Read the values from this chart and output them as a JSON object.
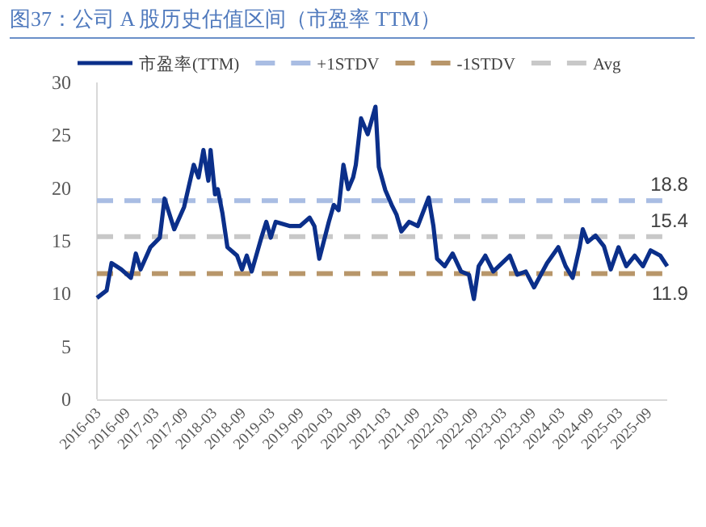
{
  "chart_data": {
    "type": "line",
    "title": "图37：公司 A 股历史估值区间（市盈率 TTM）",
    "xlim": [
      "2016-03",
      "2026-01"
    ],
    "xticks": [
      {
        "value": "2016-03",
        "label": "2016-03"
      },
      {
        "value": "2016-09",
        "label": "2016-09"
      },
      {
        "value": "2017-03",
        "label": "2017-03"
      },
      {
        "value": "2017-09",
        "label": "2017-09"
      },
      {
        "value": "2018-03",
        "label": "2018-03"
      },
      {
        "value": "2018-09",
        "label": "2018-09"
      },
      {
        "value": "2019-03",
        "label": "2019-03"
      },
      {
        "value": "2019-09",
        "label": "2019-09"
      },
      {
        "value": "2020-03",
        "label": "2020-03"
      },
      {
        "value": "2020-09",
        "label": "2020-09"
      },
      {
        "value": "2021-03",
        "label": "2021-03"
      },
      {
        "value": "2021-09",
        "label": "2021-09"
      },
      {
        "value": "2022-03",
        "label": "2022-03"
      },
      {
        "value": "2022-09",
        "label": "2022-09"
      },
      {
        "value": "2023-03",
        "label": "2023-03"
      },
      {
        "value": "2023-09",
        "label": "2023-09"
      },
      {
        "value": "2024-03",
        "label": "2024-03"
      },
      {
        "value": "2024-09",
        "label": "2024-09"
      },
      {
        "value": "2025-03",
        "label": "2025-03"
      },
      {
        "value": "2025-09",
        "label": "2025-09"
      }
    ],
    "ylim": [
      0,
      30
    ],
    "yticks": [
      0,
      5,
      10,
      15,
      20,
      25,
      30
    ],
    "grid": false,
    "legend": "top",
    "series": [
      {
        "name": "市盈率(TTM)",
        "color": "#0b2f8a",
        "line_style": "solid",
        "x": [
          "2016-03",
          "2016-05",
          "2016-06",
          "2016-08",
          "2016-10",
          "2016-11",
          "2016-12",
          "2017-02",
          "2017-04",
          "2017-05",
          "2017-07",
          "2017-09",
          "2017-11",
          "2017-12",
          "2018-01",
          "2018-02-01",
          "2018-02-15",
          "2018-03-15",
          "2018-04",
          "2018-05",
          "2018-06",
          "2018-08",
          "2018-09",
          "2018-10",
          "2018-11",
          "2019-01",
          "2019-02",
          "2019-03",
          "2019-04",
          "2019-07",
          "2019-09",
          "2019-11",
          "2019-12",
          "2020-01",
          "2020-03",
          "2020-04",
          "2020-05",
          "2020-06",
          "2020-07",
          "2020-08-01",
          "2020-08-18",
          "2020-09-20",
          "2020-11",
          "2020-12-20",
          "2021-01-10",
          "2021-02-20",
          "2021-04",
          "2021-05",
          "2021-06",
          "2021-07-20",
          "2021-09-12",
          "2021-11-20",
          "2021-12-20",
          "2022-01-12",
          "2022-03",
          "2022-04-20",
          "2022-06-12",
          "2022-08",
          "2022-09",
          "2022-10",
          "2022-11-12",
          "2023-01",
          "2023-04-15",
          "2023-06",
          "2023-07-25",
          "2023-09-15",
          "2023-12-06",
          "2024-02-15",
          "2024-04",
          "2024-05-15",
          "2024-06-28",
          "2024-07-18",
          "2024-08-18",
          "2024-10-06",
          "2024-11-28",
          "2025-01-10",
          "2025-02-28",
          "2025-04-18",
          "2025-06-10",
          "2025-08",
          "2025-09-18",
          "2025-11-18",
          "2026-01"
        ],
        "values": [
          9.6,
          10.3,
          12.9,
          12.3,
          11.5,
          13.8,
          12.3,
          14.4,
          15.3,
          19.0,
          16.1,
          18.2,
          22.2,
          21.0,
          23.6,
          20.7,
          23.6,
          19.4,
          19.9,
          17.6,
          14.4,
          13.6,
          12.3,
          13.6,
          12.1,
          15.3,
          16.8,
          15.3,
          16.8,
          16.4,
          16.4,
          17.2,
          16.4,
          13.3,
          16.8,
          18.4,
          17.9,
          22.2,
          19.9,
          21.0,
          22.2,
          26.6,
          25.1,
          27.7,
          22.0,
          19.8,
          18.4,
          17.5,
          15.9,
          16.8,
          16.4,
          19.1,
          16.4,
          13.3,
          12.6,
          13.8,
          12.1,
          11.8,
          9.5,
          12.6,
          13.6,
          12.1,
          13.6,
          11.8,
          12.1,
          10.6,
          12.9,
          14.4,
          12.6,
          11.5,
          14.4,
          16.1,
          14.9,
          15.5,
          14.5,
          12.3,
          14.4,
          12.6,
          13.6,
          12.6,
          14.1,
          13.6,
          12.6
        ]
      },
      {
        "name": "+1STDV",
        "color": "#a9bde3",
        "line_style": "dashed",
        "x": [
          "2016-03",
          "2025-12"
        ],
        "values": [
          18.8,
          18.8
        ]
      },
      {
        "name": "-1STDV",
        "color": "#b8966a",
        "line_style": "dashed",
        "x": [
          "2016-03",
          "2025-12"
        ],
        "values": [
          11.9,
          11.9
        ]
      },
      {
        "name": "Avg",
        "color": "#c8c8c8",
        "line_style": "dashed",
        "x": [
          "2016-03",
          "2025-12"
        ],
        "values": [
          15.4,
          15.4
        ]
      }
    ],
    "annotations": [
      {
        "text": "18.8",
        "x": "2025-12",
        "y": 18.8
      },
      {
        "text": "15.4",
        "x": "2025-12",
        "y": 15.4
      },
      {
        "text": "11.9",
        "x": "2025-12",
        "y": 11.9
      }
    ]
  }
}
